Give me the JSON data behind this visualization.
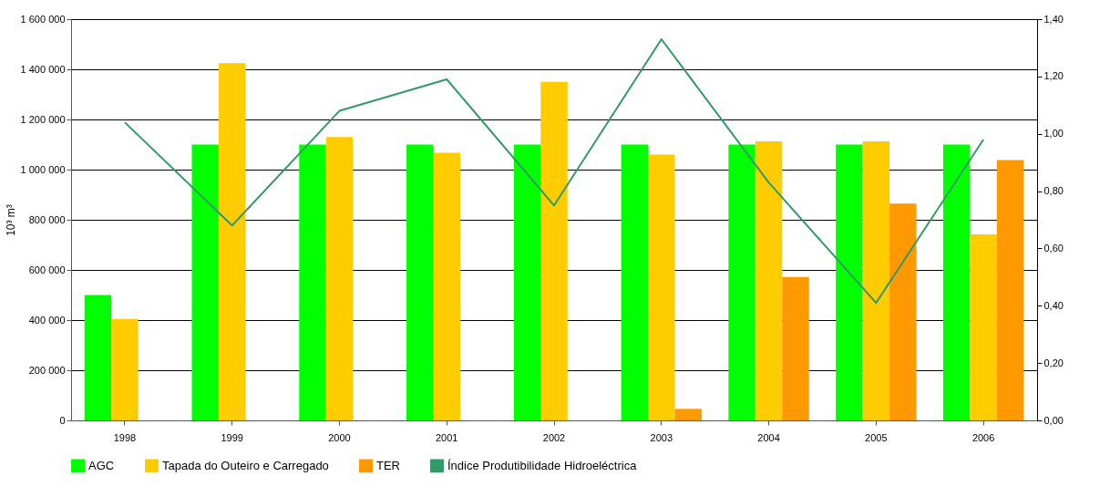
{
  "chart_data": {
    "type": "bar",
    "ylabel": "10³ m³",
    "categories": [
      "1998",
      "1999",
      "2000",
      "2001",
      "2002",
      "2003",
      "2004",
      "2005",
      "2006"
    ],
    "series": [
      {
        "name": "AGC",
        "color": "#00ff00",
        "values": [
          500000,
          1100000,
          1100000,
          1100000,
          1100000,
          1100000,
          1100000,
          1100000,
          1100000
        ]
      },
      {
        "name": "Tapada do Outeiro e Carregado",
        "color": "#ffcc00",
        "values": [
          405000,
          1425000,
          1130000,
          1067000,
          1350000,
          1060000,
          1113000,
          1113000,
          742000
        ]
      },
      {
        "name": "TER",
        "color": "#ff9900",
        "values": [
          null,
          null,
          null,
          null,
          null,
          46000,
          572000,
          865000,
          1038000
        ]
      },
      {
        "name": "Índice Produtibilidade Hidroeléctrica",
        "color": "#339966",
        "type": "line",
        "axis": "y2",
        "line_style": "solid",
        "values": [
          1.04,
          0.68,
          1.08,
          1.19,
          0.75,
          1.33,
          0.83,
          0.41,
          0.98
        ]
      }
    ],
    "ylim": [
      0,
      1600000
    ],
    "yticks": [
      {
        "value": 0,
        "label": "0"
      },
      {
        "value": 200000,
        "label": "200 000"
      },
      {
        "value": 400000,
        "label": "400 000"
      },
      {
        "value": 600000,
        "label": "600 000"
      },
      {
        "value": 800000,
        "label": "800 000"
      },
      {
        "value": 1000000,
        "label": "1 000 000"
      },
      {
        "value": 1200000,
        "label": "1 200 000"
      },
      {
        "value": 1400000,
        "label": "1 400 000"
      },
      {
        "value": 1600000,
        "label": "1 600 000"
      }
    ],
    "y2lim": [
      0,
      1.4
    ],
    "y2ticks": [
      {
        "value": 0,
        "label": "0,00"
      },
      {
        "value": 0.2,
        "label": "0,20"
      },
      {
        "value": 0.4,
        "label": "0,40"
      },
      {
        "value": 0.6,
        "label": "0,60"
      },
      {
        "value": 0.8,
        "label": "0,80"
      },
      {
        "value": 1.0,
        "label": "1,00"
      },
      {
        "value": 1.2,
        "label": "1,20"
      },
      {
        "value": 1.4,
        "label": "1,40"
      }
    ],
    "grid": "y",
    "legend": "bottom",
    "marker": "none"
  }
}
